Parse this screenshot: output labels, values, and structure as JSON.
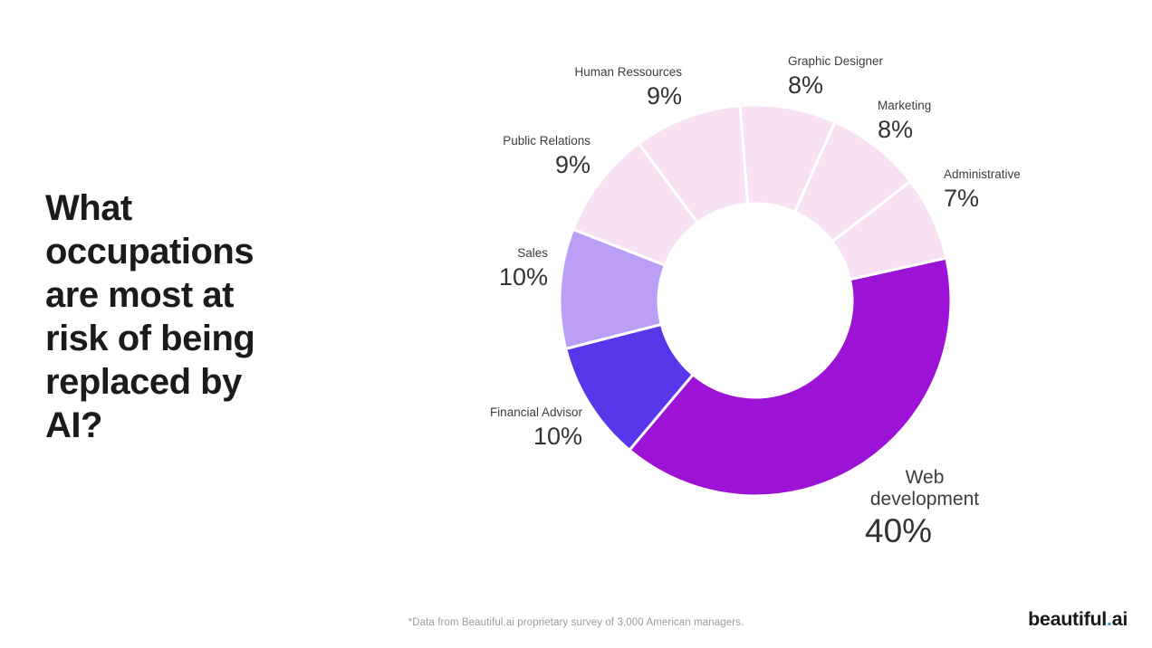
{
  "slide": {
    "title": "What occupations are most at risk of being replaced by AI?",
    "title_lines": [
      "What",
      "occupations",
      "are most at",
      "risk of being",
      "replaced by",
      "AI?"
    ],
    "footnote": "*Data from Beautiful.ai proprietary survey of 3,000 American managers.",
    "logo": {
      "main": "beautiful",
      "dot": ".",
      "suffix": "ai",
      "dot_color": "#2E9FDB"
    }
  },
  "chart_data": {
    "type": "pie",
    "subtype": "donut",
    "title": "",
    "legend_position": "none",
    "labels_position": "outside",
    "total": 101,
    "start_angle_deg": -4.5,
    "direction": "clockwise",
    "gap_color": "#ffffff",
    "segments": [
      {
        "label": "Graphic Designer",
        "value": 8,
        "display": "8%",
        "color": "#F7E1F2"
      },
      {
        "label": "Marketing",
        "value": 8,
        "display": "8%",
        "color": "#F7E1F2"
      },
      {
        "label": "Administrative",
        "value": 7,
        "display": "7%",
        "color": "#F7E1F2"
      },
      {
        "label": "Web development",
        "value": 40,
        "display": "40%",
        "color": "#9D13D6"
      },
      {
        "label": "Financial Advisor",
        "value": 10,
        "display": "10%",
        "color": "#5A36EA"
      },
      {
        "label": "Sales",
        "value": 10,
        "display": "10%",
        "color": "#BB9EF5"
      },
      {
        "label": "Public Relations",
        "value": 9,
        "display": "9%",
        "color": "#F7E1F2"
      },
      {
        "label": "Human Ressources",
        "value": 9,
        "display": "9%",
        "color": "#F7E1F2"
      }
    ]
  }
}
